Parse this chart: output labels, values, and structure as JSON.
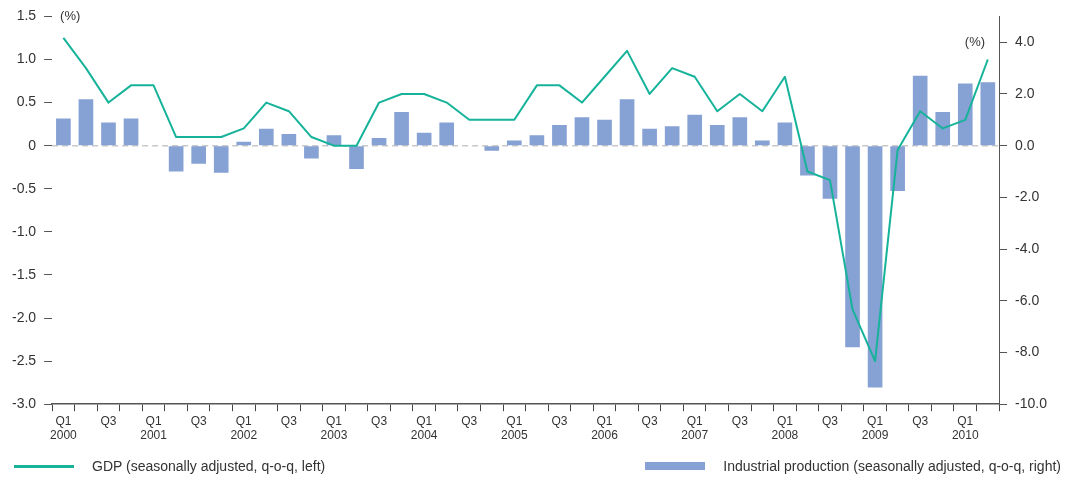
{
  "chart_data": {
    "type": "bar",
    "ylabel": "(%)",
    "y2label": "(%)",
    "categories": [
      "Q1 2000",
      null,
      "Q3",
      null,
      "Q1 2001",
      null,
      "Q3",
      null,
      "Q1 2002",
      null,
      "Q3",
      null,
      "Q1 2003",
      null,
      "Q3",
      null,
      "Q1 2004",
      null,
      "Q3",
      null,
      "Q1 2005",
      null,
      "Q3",
      null,
      "Q1 2006",
      null,
      "Q3",
      null,
      "Q1 2007",
      null,
      "Q3",
      null,
      "Q1 2008",
      null,
      "Q3",
      null,
      "Q1 2009",
      null,
      "Q3",
      null,
      "Q1 2010",
      null
    ],
    "series": [
      {
        "name": "GDP (seasonally adjusted, q-o-q, left)",
        "type": "line",
        "color": "#16b39a",
        "values": [
          1.25,
          0.9,
          0.5,
          0.7,
          0.7,
          0.1,
          0.1,
          0.1,
          0.2,
          0.5,
          0.4,
          0.1,
          0,
          0,
          0.5,
          0.6,
          0.6,
          0.5,
          0.3,
          0.3,
          0.3,
          0.7,
          0.7,
          0.5,
          0.8,
          1.1,
          0.6,
          0.9,
          0.8,
          0.4,
          0.6,
          0.4,
          0.8,
          -0.3,
          -0.4,
          -1.9,
          -2.5,
          -0.05,
          0.4,
          0.2,
          0.3,
          1.0
        ]
      },
      {
        "name": "Industrial production (seasonally adjusted, q-o-q, right)",
        "axis": "y2",
        "color": "#86a1d3",
        "values": [
          1.05,
          1.8,
          0.9,
          1.05,
          0,
          -1.0,
          -0.7,
          -1.05,
          0.15,
          0.65,
          0.45,
          -0.5,
          0.4,
          -0.9,
          0.3,
          1.3,
          0.5,
          0.9,
          0,
          -0.2,
          0.2,
          0.4,
          0.8,
          1.1,
          1.0,
          1.8,
          0.65,
          0.75,
          1.2,
          0.8,
          1.1,
          0.2,
          0.9,
          -1.15,
          -2.05,
          -7.8,
          -9.35,
          -1.75,
          2.7,
          1.3,
          2.4,
          2.45
        ]
      }
    ],
    "ylim": [
      -3,
      1.5
    ],
    "yticks": [
      {
        "value": -3,
        "label": "-3.0"
      },
      {
        "value": -2.5,
        "label": "-2.5"
      },
      {
        "value": -2,
        "label": "-2.0"
      },
      {
        "value": -1.5,
        "label": "-1.5"
      },
      {
        "value": -1,
        "label": "-1.0"
      },
      {
        "value": -0.5,
        "label": "-0.5"
      },
      0,
      0.5,
      {
        "value": 1,
        "label": "1.0"
      },
      1.5
    ],
    "y2lim": [
      -10,
      5
    ],
    "y2ticks": [
      {
        "value": -10,
        "label": "-10.0"
      },
      {
        "value": -8,
        "label": "-8.0"
      },
      {
        "value": -6,
        "label": "-6.0"
      },
      {
        "value": -4,
        "label": "-4.0"
      },
      {
        "value": -2,
        "label": "-2.0"
      },
      {
        "value": 0,
        "label": "0.0"
      },
      {
        "value": 2,
        "label": "2.0"
      },
      {
        "value": 4,
        "label": "4.0"
      }
    ],
    "ref_lines": [
      {
        "axis": "y",
        "value": 0,
        "color": "#c8c8c8",
        "line_style": "dashed"
      }
    ],
    "grid": false,
    "legend": "bottom",
    "marker": "none",
    "line_style": "solid"
  }
}
